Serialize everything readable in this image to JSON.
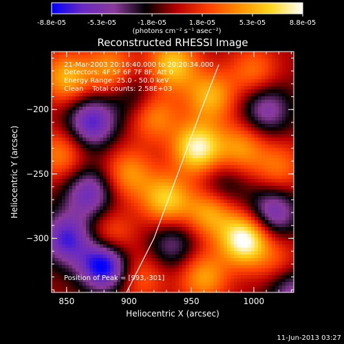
{
  "chart_data": {
    "type": "heatmap",
    "title": "Reconstructed RHESSI Image",
    "xlabel": "Heliocentric X (arcsec)",
    "ylabel": "Heliocentric Y (arcsec)",
    "xlim": [
      838,
      1032
    ],
    "ylim": [
      -342,
      -155
    ],
    "x_ticks": [
      850,
      900,
      950,
      1000
    ],
    "y_ticks": [
      -200,
      -250,
      -300
    ],
    "colorbar": {
      "tick_labels": [
        "-8.8e-05",
        "-5.3e-05",
        "-1.8e-05",
        "1.8e-05",
        "5.3e-05",
        "8.8e-05"
      ],
      "range": [
        -8.8e-05,
        8.8e-05
      ],
      "unit_label": "(photons cm⁻² s⁻¹ asec⁻²)",
      "colors": [
        "#0000ff",
        "#6a2ac0",
        "#8a3a9a",
        "#000000",
        "#b80000",
        "#ff4000",
        "#ff9000",
        "#ffd820",
        "#ffffff"
      ]
    },
    "info_lines": [
      "21-Mar-2003 20:16:40.000 to 20:20:34.000",
      "Detectors: 4F 5F 6F 7F 8F, Att 0",
      "Energy Range: 25.0 - 50.0 keV",
      "Clean    Total counts: 2.58E+03"
    ],
    "peak_label": "Position of Peak = [993,-301]",
    "limb_curve": [
      [
        898,
        -342
      ],
      [
        920,
        -300
      ],
      [
        939,
        -250
      ],
      [
        958,
        -200
      ],
      [
        972,
        -165
      ]
    ],
    "blobs": [
      {
        "x": 850,
        "y": -175,
        "v": 0.6
      },
      {
        "x": 885,
        "y": -168,
        "v": 0.5
      },
      {
        "x": 935,
        "y": -165,
        "v": 0.7
      },
      {
        "x": 965,
        "y": -190,
        "v": 0.6
      },
      {
        "x": 1000,
        "y": -170,
        "v": 0.4
      },
      {
        "x": 920,
        "y": -205,
        "v": 0.5
      },
      {
        "x": 955,
        "y": -230,
        "v": 0.9
      },
      {
        "x": 990,
        "y": -230,
        "v": 0.5
      },
      {
        "x": 845,
        "y": -235,
        "v": 0.45
      },
      {
        "x": 900,
        "y": -250,
        "v": 0.5
      },
      {
        "x": 930,
        "y": -270,
        "v": 0.7
      },
      {
        "x": 965,
        "y": -280,
        "v": 0.6
      },
      {
        "x": 993,
        "y": -301,
        "v": 1.0
      },
      {
        "x": 1020,
        "y": -245,
        "v": 0.4
      },
      {
        "x": 885,
        "y": -300,
        "v": 0.45
      },
      {
        "x": 910,
        "y": -330,
        "v": 0.35
      },
      {
        "x": 960,
        "y": -330,
        "v": 0.55
      },
      {
        "x": 1020,
        "y": -320,
        "v": 0.3
      },
      {
        "x": 870,
        "y": -210,
        "v": -0.7
      },
      {
        "x": 868,
        "y": -265,
        "v": -0.6
      },
      {
        "x": 850,
        "y": -300,
        "v": -0.7
      },
      {
        "x": 880,
        "y": -320,
        "v": -1.0
      },
      {
        "x": 1010,
        "y": -200,
        "v": -0.5
      },
      {
        "x": 1015,
        "y": -280,
        "v": -0.6
      },
      {
        "x": 935,
        "y": -305,
        "v": -0.4
      },
      {
        "x": 975,
        "y": -260,
        "v": -0.3
      },
      {
        "x": 1030,
        "y": -340,
        "v": -0.5
      },
      {
        "x": 905,
        "y": -190,
        "v": -0.3
      }
    ]
  },
  "footer": {
    "timestamp": "11-Jun-2013 03:27"
  }
}
